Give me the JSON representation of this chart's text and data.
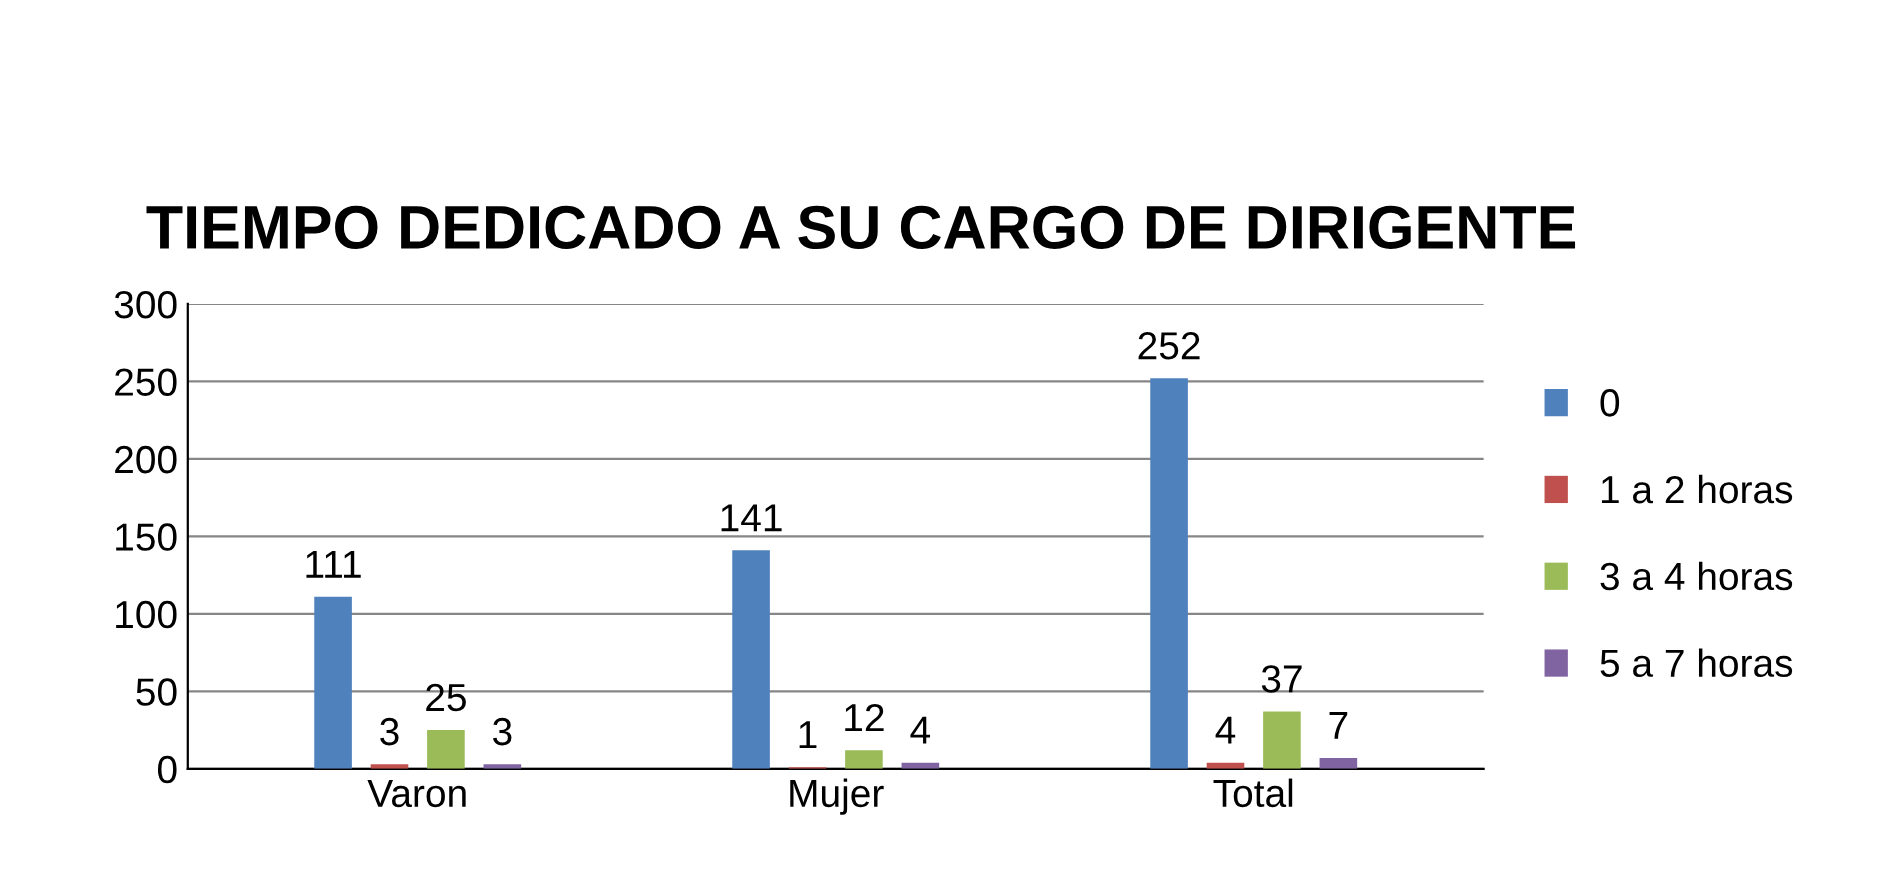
{
  "chart_data": {
    "type": "bar",
    "title": "TIEMPO DEDICADO A SU CARGO DE DIRIGENTE",
    "categories": [
      "Varon",
      "Mujer",
      "Total"
    ],
    "series": [
      {
        "name": "0",
        "color": "#4f81bd",
        "values": [
          111,
          141,
          252
        ]
      },
      {
        "name": "1 a 2 horas",
        "color": "#c0504d",
        "values": [
          3,
          1,
          4
        ]
      },
      {
        "name": "3 a 4 horas",
        "color": "#9bbb59",
        "values": [
          25,
          12,
          37
        ]
      },
      {
        "name": "5 a 7 horas",
        "color": "#8064a2",
        "values": [
          3,
          4,
          7
        ]
      }
    ],
    "ylim": [
      0,
      300
    ],
    "yticks": [
      0,
      50,
      100,
      150,
      200,
      250,
      300
    ],
    "grid": "y",
    "legend": "right",
    "data_labels": true
  }
}
